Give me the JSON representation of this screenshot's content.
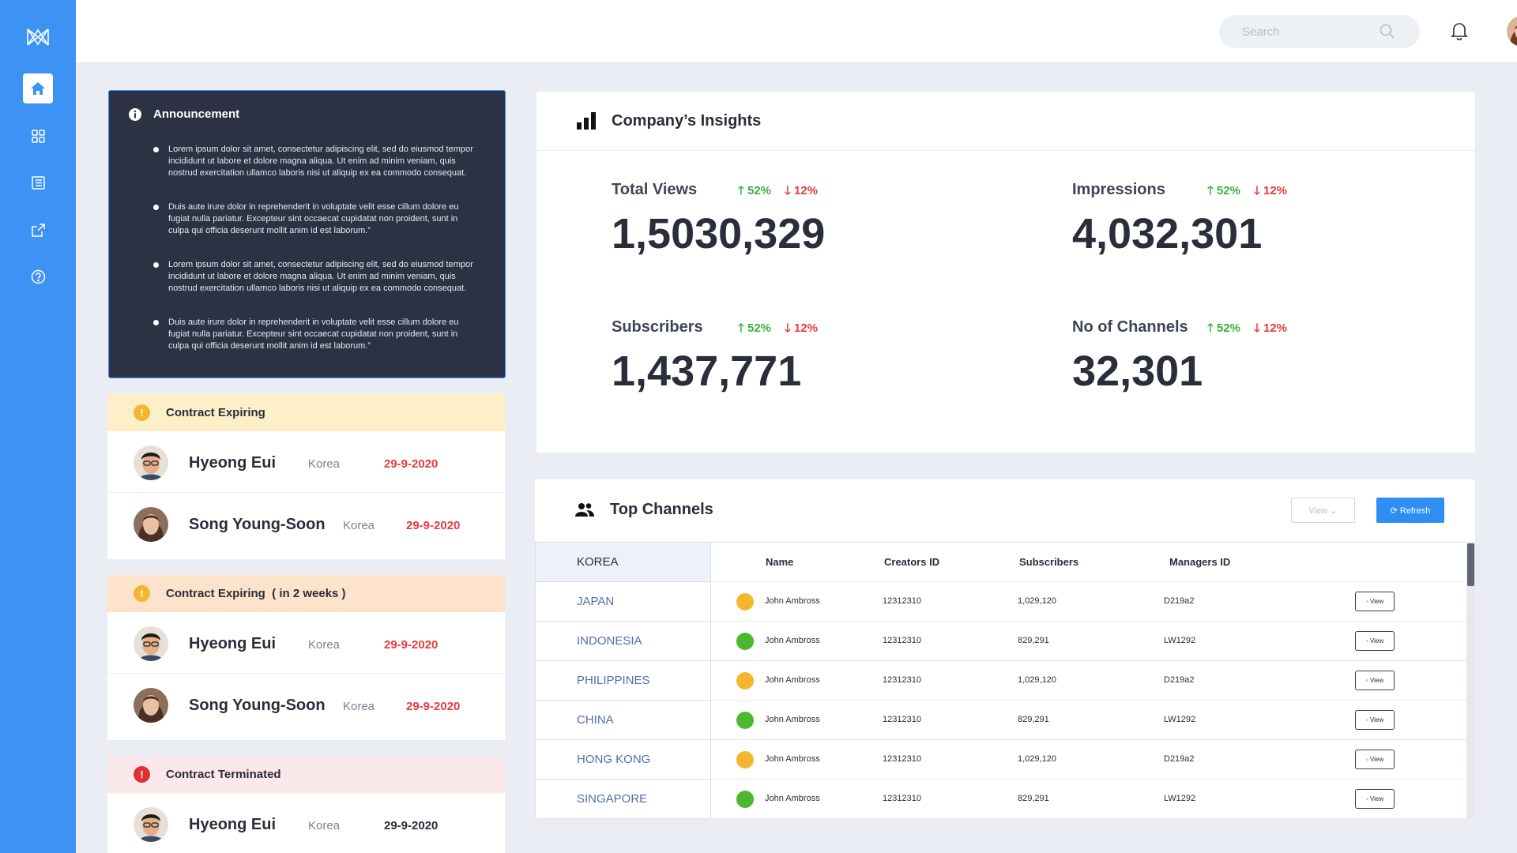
{
  "search": {
    "placeholder": "Search"
  },
  "announcement": {
    "title": "Announcement",
    "items": [
      "Lorem ipsum dolor sit amet, consectetur adipiscing elit, sed do eiusmod tempor incididunt ut labore et dolore magna aliqua. Ut enim ad minim veniam, quis nostrud exercitation ullamco laboris nisi ut aliquip ex ea commodo consequat.",
      "Duis aute irure dolor in reprehenderit in voluptate velit esse cillum dolore eu fugiat nulla pariatur. Excepteur sint occaecat cupidatat non proident, sunt in culpa qui officia deserunt mollit anim id est laborum.”",
      "Lorem ipsum dolor sit amet, consectetur adipiscing elit, sed do eiusmod tempor incididunt ut labore et dolore magna aliqua. Ut enim ad minim veniam, quis nostrud exercitation ullamco laboris nisi ut aliquip ex ea commodo consequat.",
      "Duis aute irure dolor in reprehenderit in voluptate velit esse cillum dolore eu fugiat nulla pariatur. Excepteur sint occaecat cupidatat non proident, sunt in culpa qui officia deserunt mollit anim id est laborum.”"
    ]
  },
  "contracts": [
    {
      "title": "Contract Expiring",
      "bg": "#fdf0c9",
      "icon_color": "#f3b72e",
      "people": [
        {
          "name": "Hyeong Eui",
          "country": "Korea",
          "date": "29-9-2020",
          "date_color": "#e53c3c"
        },
        {
          "name": "Song Young-Soon",
          "country": "Korea",
          "date": "29-9-2020",
          "date_color": "#e53c3c"
        }
      ]
    },
    {
      "title": "Contract Expiring  ( in 2 weeks )",
      "bg": "#fde3cb",
      "icon_color": "#f3b72e",
      "people": [
        {
          "name": "Hyeong Eui",
          "country": "Korea",
          "date": "29-9-2020",
          "date_color": "#e53c3c"
        },
        {
          "name": "Song Young-Soon",
          "country": "Korea",
          "date": "29-9-2020",
          "date_color": "#e53c3c"
        }
      ]
    },
    {
      "title": "Contract Terminated",
      "bg": "#fbe8ea",
      "icon_color": "#e02f36",
      "people": [
        {
          "name": "Hyeong Eui",
          "country": "Korea",
          "date": "29-9-2020",
          "date_color": "#2a2d3a"
        }
      ]
    }
  ],
  "insights": {
    "title": "Company’s Insights",
    "metrics": [
      {
        "label": "Total Views",
        "up": "52%",
        "down": "12%",
        "value": "1,5030,329"
      },
      {
        "label": "Impressions",
        "up": "52%",
        "down": "12%",
        "value": "4,032,301"
      },
      {
        "label": "Subscribers",
        "up": "52%",
        "down": "12%",
        "value": "1,437,771"
      },
      {
        "label": "No of Channels",
        "up": "52%",
        "down": "12%",
        "value": "32,301"
      }
    ]
  },
  "channels": {
    "title": "Top Channels",
    "view_label": "View",
    "refresh_label": "Refresh",
    "countries": [
      "KOREA",
      "JAPAN",
      "INDONESIA",
      "PHILIPPINES",
      "CHINA",
      "HONG KONG",
      "SINGAPORE"
    ],
    "selected_country": "KOREA",
    "columns": [
      "Name",
      "Creators ID",
      "Subscribers",
      "Managers ID"
    ],
    "row_button": "View",
    "rows": [
      {
        "status": "#f3b72e",
        "name": "John Ambross",
        "creator_id": "12312310",
        "subscribers": "1,029,120",
        "manager_id": "D219a2"
      },
      {
        "status": "#4cb82f",
        "name": "John Ambross",
        "creator_id": "12312310",
        "subscribers": "829,291",
        "manager_id": "LW1292"
      },
      {
        "status": "#f3b72e",
        "name": "John Ambross",
        "creator_id": "12312310",
        "subscribers": "1,029,120",
        "manager_id": "D219a2"
      },
      {
        "status": "#4cb82f",
        "name": "John Ambross",
        "creator_id": "12312310",
        "subscribers": "829,291",
        "manager_id": "LW1292"
      },
      {
        "status": "#f3b72e",
        "name": "John Ambross",
        "creator_id": "12312310",
        "subscribers": "1,029,120",
        "manager_id": "D219a2"
      },
      {
        "status": "#4cb82f",
        "name": "John Ambross",
        "creator_id": "12312310",
        "subscribers": "829,291",
        "manager_id": "LW1292"
      }
    ]
  }
}
